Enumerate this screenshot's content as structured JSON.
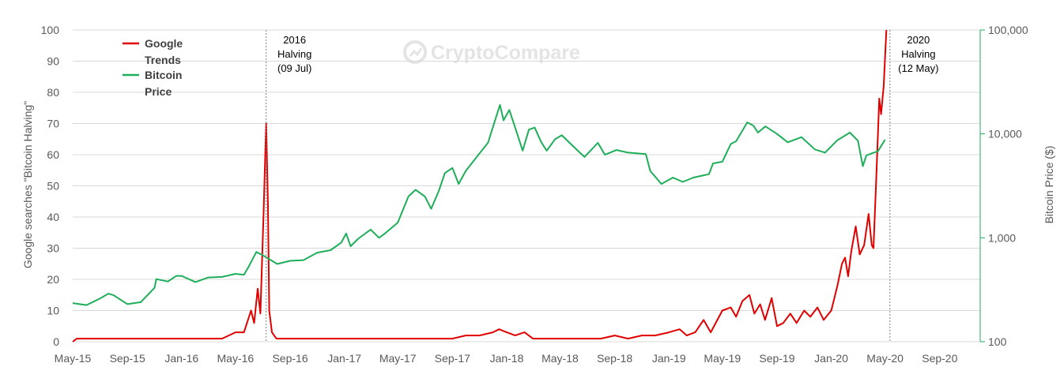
{
  "chart_data": {
    "type": "line",
    "title": "",
    "watermark": "CryptoCompare",
    "x_tick_labels": [
      "May-15",
      "Sep-15",
      "Jan-16",
      "May-16",
      "Sep-16",
      "Jan-17",
      "May-17",
      "Sep-17",
      "Jan-18",
      "May-18",
      "Sep-18",
      "Jan-19",
      "May-19",
      "Sep-19",
      "Jan-20",
      "May-20",
      "Sep-20"
    ],
    "x_range": [
      "2015-05-01",
      "2020-12-01"
    ],
    "ylabel_left": "Google searches \"Bitcoin Halving\"",
    "ylabel_right": "Bitcoin Price ($)",
    "y_left_ticks": [
      "0",
      "10",
      "20",
      "30",
      "40",
      "50",
      "60",
      "70",
      "80",
      "90",
      "100"
    ],
    "y_left_range": [
      0,
      100
    ],
    "y_right_ticks": [
      "100",
      "1,000",
      "10,000",
      "100,000"
    ],
    "y_right_range": [
      100,
      100000
    ],
    "y_right_scale": "log",
    "grid": true,
    "legend_position": "top-left",
    "legend": [
      {
        "line1": "Google",
        "line2": "Trends",
        "color": "#e00000"
      },
      {
        "line1": "Bitcoin",
        "line2": "Price",
        "color": "#1fae5a"
      }
    ],
    "annotations": [
      {
        "date": "2016-07-09",
        "lines": [
          "2016",
          "Halving",
          "(09 Jul)"
        ]
      },
      {
        "date": "2020-05-12",
        "lines": [
          "2020",
          "Halving",
          "(12 May)"
        ]
      }
    ],
    "series": [
      {
        "name": "Google Trends",
        "axis": "left",
        "color": "#e00000",
        "points": [
          [
            "2015-05-01",
            0
          ],
          [
            "2015-05-10",
            1
          ],
          [
            "2015-06-01",
            1
          ],
          [
            "2015-07-01",
            1
          ],
          [
            "2015-08-01",
            1
          ],
          [
            "2015-09-01",
            1
          ],
          [
            "2015-10-01",
            1
          ],
          [
            "2015-11-01",
            1
          ],
          [
            "2015-12-01",
            1
          ],
          [
            "2016-01-01",
            1
          ],
          [
            "2016-02-01",
            1
          ],
          [
            "2016-03-01",
            1
          ],
          [
            "2016-04-01",
            1
          ],
          [
            "2016-05-01",
            3
          ],
          [
            "2016-05-20",
            3
          ],
          [
            "2016-06-05",
            10
          ],
          [
            "2016-06-12",
            6
          ],
          [
            "2016-06-20",
            17
          ],
          [
            "2016-06-26",
            9
          ],
          [
            "2016-07-03",
            40
          ],
          [
            "2016-07-09",
            70
          ],
          [
            "2016-07-13",
            45
          ],
          [
            "2016-07-16",
            10
          ],
          [
            "2016-07-22",
            3
          ],
          [
            "2016-08-01",
            1
          ],
          [
            "2016-09-01",
            1
          ],
          [
            "2016-10-01",
            1
          ],
          [
            "2016-11-01",
            1
          ],
          [
            "2016-12-01",
            1
          ],
          [
            "2017-01-01",
            1
          ],
          [
            "2017-03-01",
            1
          ],
          [
            "2017-05-01",
            1
          ],
          [
            "2017-07-01",
            1
          ],
          [
            "2017-09-01",
            1
          ],
          [
            "2017-10-01",
            2
          ],
          [
            "2017-11-01",
            2
          ],
          [
            "2017-12-01",
            3
          ],
          [
            "2017-12-15",
            4
          ],
          [
            "2018-01-01",
            3
          ],
          [
            "2018-01-20",
            2
          ],
          [
            "2018-02-10",
            3
          ],
          [
            "2018-03-01",
            1
          ],
          [
            "2018-05-01",
            1
          ],
          [
            "2018-07-01",
            1
          ],
          [
            "2018-08-01",
            1
          ],
          [
            "2018-09-01",
            2
          ],
          [
            "2018-10-01",
            1
          ],
          [
            "2018-11-01",
            2
          ],
          [
            "2018-12-01",
            2
          ],
          [
            "2019-01-01",
            3
          ],
          [
            "2019-01-25",
            4
          ],
          [
            "2019-02-10",
            2
          ],
          [
            "2019-03-01",
            3
          ],
          [
            "2019-03-20",
            7
          ],
          [
            "2019-04-05",
            3
          ],
          [
            "2019-05-01",
            10
          ],
          [
            "2019-05-20",
            11
          ],
          [
            "2019-06-01",
            8
          ],
          [
            "2019-06-15",
            13
          ],
          [
            "2019-07-01",
            15
          ],
          [
            "2019-07-12",
            9
          ],
          [
            "2019-07-25",
            12
          ],
          [
            "2019-08-05",
            7
          ],
          [
            "2019-08-20",
            14
          ],
          [
            "2019-09-01",
            5
          ],
          [
            "2019-09-15",
            6
          ],
          [
            "2019-10-01",
            9
          ],
          [
            "2019-10-15",
            6
          ],
          [
            "2019-11-01",
            10
          ],
          [
            "2019-11-15",
            8
          ],
          [
            "2019-12-01",
            11
          ],
          [
            "2019-12-15",
            7
          ],
          [
            "2020-01-01",
            10
          ],
          [
            "2020-01-15",
            18
          ],
          [
            "2020-01-25",
            25
          ],
          [
            "2020-02-01",
            27
          ],
          [
            "2020-02-08",
            21
          ],
          [
            "2020-02-15",
            29
          ],
          [
            "2020-02-25",
            37
          ],
          [
            "2020-03-05",
            28
          ],
          [
            "2020-03-15",
            31
          ],
          [
            "2020-03-25",
            41
          ],
          [
            "2020-04-01",
            31
          ],
          [
            "2020-04-05",
            30
          ],
          [
            "2020-04-12",
            55
          ],
          [
            "2020-04-18",
            78
          ],
          [
            "2020-04-22",
            73
          ],
          [
            "2020-04-28",
            82
          ],
          [
            "2020-05-04",
            100
          ]
        ]
      },
      {
        "name": "Bitcoin Price",
        "axis": "right",
        "color": "#1fae5a",
        "points": [
          [
            "2015-05-01",
            235
          ],
          [
            "2015-06-01",
            225
          ],
          [
            "2015-07-01",
            260
          ],
          [
            "2015-07-20",
            290
          ],
          [
            "2015-08-01",
            280
          ],
          [
            "2015-09-01",
            230
          ],
          [
            "2015-10-01",
            240
          ],
          [
            "2015-11-01",
            330
          ],
          [
            "2015-11-05",
            400
          ],
          [
            "2015-12-01",
            380
          ],
          [
            "2015-12-20",
            430
          ],
          [
            "2016-01-01",
            430
          ],
          [
            "2016-02-01",
            375
          ],
          [
            "2016-03-01",
            415
          ],
          [
            "2016-04-01",
            420
          ],
          [
            "2016-05-01",
            450
          ],
          [
            "2016-05-20",
            440
          ],
          [
            "2016-06-01",
            540
          ],
          [
            "2016-06-17",
            730
          ],
          [
            "2016-07-01",
            680
          ],
          [
            "2016-07-09",
            650
          ],
          [
            "2016-08-03",
            560
          ],
          [
            "2016-09-01",
            600
          ],
          [
            "2016-10-01",
            610
          ],
          [
            "2016-11-01",
            720
          ],
          [
            "2016-12-01",
            760
          ],
          [
            "2016-12-25",
            900
          ],
          [
            "2017-01-05",
            1100
          ],
          [
            "2017-01-15",
            830
          ],
          [
            "2017-02-01",
            980
          ],
          [
            "2017-03-01",
            1200
          ],
          [
            "2017-03-20",
            1000
          ],
          [
            "2017-04-01",
            1090
          ],
          [
            "2017-05-01",
            1400
          ],
          [
            "2017-05-25",
            2500
          ],
          [
            "2017-06-10",
            2900
          ],
          [
            "2017-07-01",
            2500
          ],
          [
            "2017-07-15",
            1900
          ],
          [
            "2017-08-01",
            2800
          ],
          [
            "2017-08-15",
            4200
          ],
          [
            "2017-09-01",
            4700
          ],
          [
            "2017-09-15",
            3300
          ],
          [
            "2017-10-01",
            4400
          ],
          [
            "2017-11-01",
            6500
          ],
          [
            "2017-11-20",
            8200
          ],
          [
            "2017-12-07",
            14000
          ],
          [
            "2017-12-17",
            19000
          ],
          [
            "2017-12-25",
            13500
          ],
          [
            "2018-01-07",
            17000
          ],
          [
            "2018-01-20",
            11500
          ],
          [
            "2018-02-06",
            6900
          ],
          [
            "2018-02-20",
            11000
          ],
          [
            "2018-03-05",
            11500
          ],
          [
            "2018-03-20",
            8300
          ],
          [
            "2018-04-01",
            6900
          ],
          [
            "2018-04-20",
            8900
          ],
          [
            "2018-05-05",
            9700
          ],
          [
            "2018-06-01",
            7500
          ],
          [
            "2018-06-25",
            6000
          ],
          [
            "2018-07-25",
            8200
          ],
          [
            "2018-08-10",
            6300
          ],
          [
            "2018-09-05",
            7000
          ],
          [
            "2018-10-01",
            6600
          ],
          [
            "2018-11-10",
            6400
          ],
          [
            "2018-11-20",
            4400
          ],
          [
            "2018-12-15",
            3300
          ],
          [
            "2019-01-10",
            3800
          ],
          [
            "2019-02-01",
            3450
          ],
          [
            "2019-02-25",
            3800
          ],
          [
            "2019-04-01",
            4100
          ],
          [
            "2019-04-10",
            5200
          ],
          [
            "2019-05-01",
            5400
          ],
          [
            "2019-05-20",
            8000
          ],
          [
            "2019-06-01",
            8500
          ],
          [
            "2019-06-26",
            12900
          ],
          [
            "2019-07-10",
            12000
          ],
          [
            "2019-07-20",
            10300
          ],
          [
            "2019-08-06",
            11800
          ],
          [
            "2019-09-01",
            10000
          ],
          [
            "2019-09-25",
            8300
          ],
          [
            "2019-10-26",
            9300
          ],
          [
            "2019-11-25",
            7100
          ],
          [
            "2019-12-18",
            6600
          ],
          [
            "2020-01-15",
            8700
          ],
          [
            "2020-02-12",
            10300
          ],
          [
            "2020-03-01",
            8600
          ],
          [
            "2020-03-12",
            4900
          ],
          [
            "2020-03-20",
            6200
          ],
          [
            "2020-04-01",
            6500
          ],
          [
            "2020-04-15",
            6800
          ],
          [
            "2020-05-01",
            8800
          ]
        ]
      }
    ]
  }
}
